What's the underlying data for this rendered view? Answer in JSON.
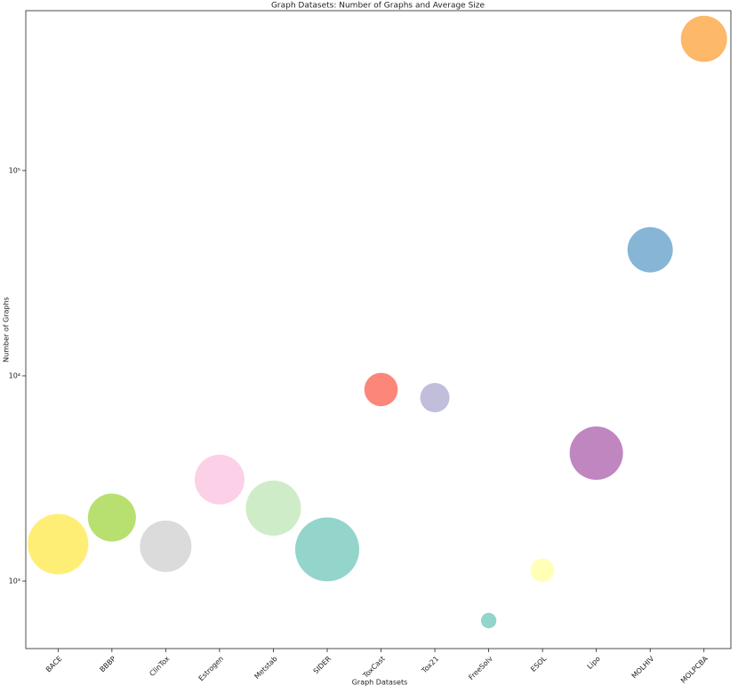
{
  "chart_data": {
    "type": "bubble",
    "title": "Graph Datasets: Number of Graphs and Average Size",
    "x_label": "Graph Datasets",
    "y_label": "Number of Graphs",
    "categories": [
      "BACE",
      "BBBP",
      "ClinTox",
      "Estrogen",
      "Metstab",
      "SIDER",
      "ToxCast",
      "Tox21",
      "FreeSolv",
      "ESOL",
      "Lipo",
      "MOLHIV",
      "MOLPCBA"
    ],
    "values": [
      1513,
      2039,
      1478,
      3122,
      2267,
      1427,
      8575,
      7831,
      642,
      1128,
      4200,
      41127,
      437929
    ],
    "sizes": [
      34.1,
      27,
      29,
      28,
      31,
      36,
      18.8,
      16.5,
      8.7,
      13.3,
      30,
      25.5,
      26
    ],
    "colors": [
      "#ffed6f",
      "#b3de69",
      "#d9d9d9",
      "#fccde5",
      "#ccebc5",
      "#8dd3c7",
      "#fb8072",
      "#bebada",
      "#8dd3c7",
      "#ffffb3",
      "#bc80bd",
      "#80b1d3",
      "#fdb462"
    ],
    "log_y": true,
    "ylim": [
      469,
      601000
    ],
    "yticks": [
      {
        "value": 1000,
        "label": "10³"
      },
      {
        "value": 10000,
        "label": "10⁴"
      },
      {
        "value": 100000,
        "label": "10⁵"
      }
    ]
  }
}
